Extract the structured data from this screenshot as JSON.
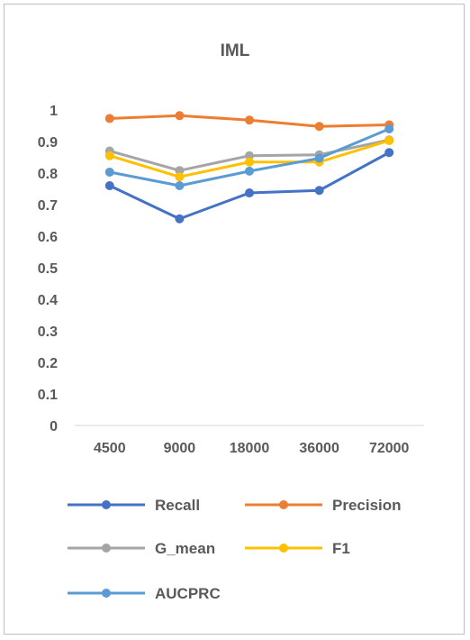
{
  "chart_data": {
    "type": "line",
    "title": "IML",
    "xlabel": "",
    "ylabel": "",
    "categories": [
      "4500",
      "9000",
      "18000",
      "36000",
      "72000"
    ],
    "ylim": [
      0,
      1
    ],
    "yticks": [
      "0",
      "0.1",
      "0.2",
      "0.3",
      "0.4",
      "0.5",
      "0.6",
      "0.7",
      "0.8",
      "0.9",
      "1"
    ],
    "grid": false,
    "legend_position": "bottom",
    "series": [
      {
        "name": "Recall",
        "color": "#4472c4",
        "values": [
          0.76,
          0.655,
          0.737,
          0.745,
          0.865
        ]
      },
      {
        "name": "Precision",
        "color": "#ed7d31",
        "values": [
          0.973,
          0.982,
          0.968,
          0.948,
          0.953
        ]
      },
      {
        "name": "G_mean",
        "color": "#a5a5a5",
        "values": [
          0.87,
          0.808,
          0.855,
          0.858,
          0.905
        ]
      },
      {
        "name": "F1",
        "color": "#ffc000",
        "values": [
          0.855,
          0.788,
          0.835,
          0.835,
          0.903
        ]
      },
      {
        "name": "AUCPRC",
        "color": "#5b9bd5",
        "values": [
          0.803,
          0.76,
          0.806,
          0.847,
          0.94
        ]
      }
    ]
  }
}
